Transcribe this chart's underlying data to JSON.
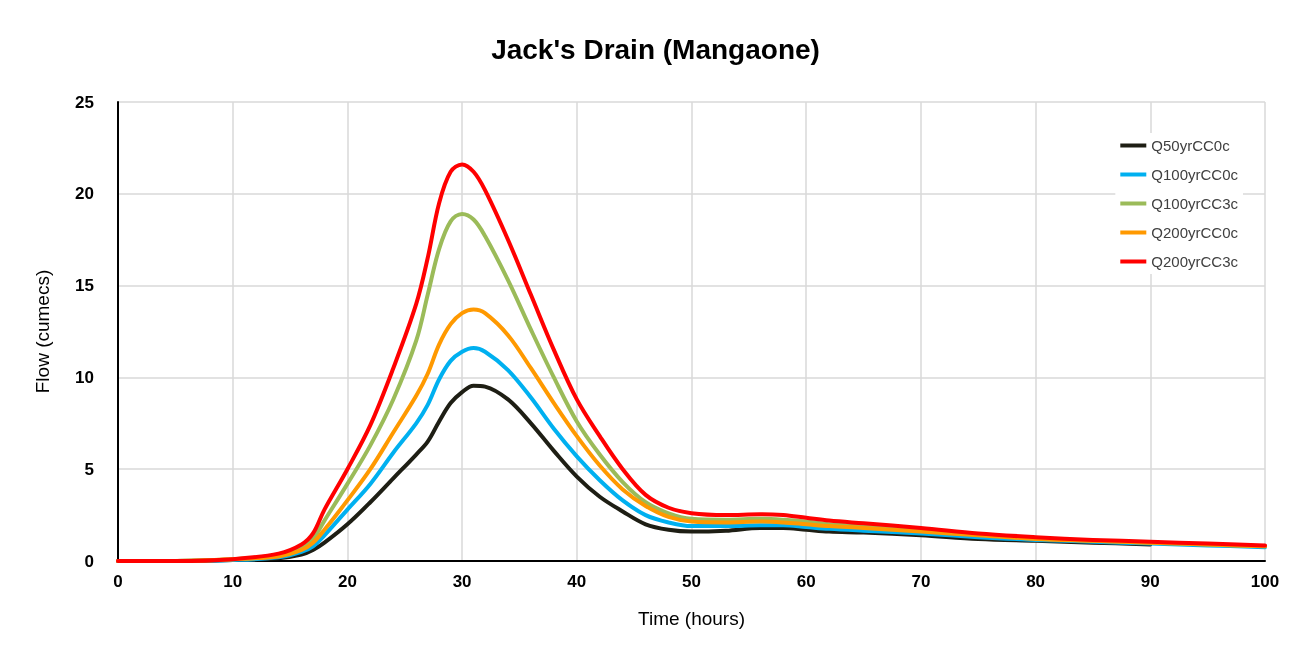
{
  "chart_data": {
    "type": "line",
    "title": "Jack's Drain (Mangaone)",
    "xlabel": "Time (hours)",
    "ylabel": "Flow (cumecs)",
    "x": [
      0,
      5,
      10,
      14,
      16,
      17,
      18,
      20,
      22,
      24,
      26,
      27,
      28,
      29,
      30,
      31,
      32,
      34,
      36,
      38,
      40,
      42,
      44,
      46,
      48,
      50,
      53,
      56,
      58,
      60,
      62,
      65,
      70,
      75,
      80,
      85,
      90,
      95,
      100
    ],
    "series": [
      {
        "name": "Q50yrCC0c",
        "color": "#1e1e14",
        "values": [
          0,
          0,
          0.05,
          0.15,
          0.35,
          0.6,
          1.0,
          2.0,
          3.2,
          4.5,
          5.8,
          6.5,
          7.6,
          8.6,
          9.2,
          9.55,
          9.5,
          8.8,
          7.5,
          6.0,
          4.6,
          3.5,
          2.7,
          2.0,
          1.7,
          1.6,
          1.65,
          1.8,
          1.8,
          1.7,
          1.6,
          1.55,
          1.4,
          1.2,
          1.1,
          1.0,
          0.9,
          null,
          null
        ]
      },
      {
        "name": "Q100yrCC0c",
        "color": "#00b0f0",
        "values": [
          0,
          0,
          0.05,
          0.2,
          0.5,
          0.8,
          1.4,
          2.8,
          4.2,
          5.9,
          7.5,
          8.5,
          9.9,
          10.9,
          11.4,
          11.6,
          11.4,
          10.4,
          8.9,
          7.2,
          5.7,
          4.4,
          3.3,
          2.5,
          2.1,
          1.9,
          1.9,
          1.95,
          1.95,
          1.85,
          1.75,
          1.65,
          1.5,
          1.3,
          1.15,
          1.05,
          0.95,
          0.85,
          0.75
        ]
      },
      {
        "name": "Q100yrCC3c",
        "color": "#9bbb59",
        "values": [
          0,
          0,
          0.1,
          0.3,
          0.7,
          1.2,
          2.2,
          4.2,
          6.3,
          8.8,
          12,
          14.5,
          17,
          18.5,
          18.9,
          18.6,
          17.7,
          15.3,
          12.6,
          10,
          7.6,
          5.8,
          4.3,
          3.2,
          2.6,
          2.3,
          2.25,
          2.3,
          2.25,
          2.15,
          2.0,
          1.9,
          1.7,
          1.45,
          1.25,
          1.1,
          1.0,
          0.9,
          0.8
        ]
      },
      {
        "name": "Q200yrCC0c",
        "color": "#ff9900",
        "values": [
          0,
          0,
          0.1,
          0.25,
          0.6,
          1.0,
          1.7,
          3.3,
          5.0,
          7.0,
          9.0,
          10.2,
          11.8,
          12.9,
          13.5,
          13.7,
          13.5,
          12.3,
          10.5,
          8.6,
          6.8,
          5.2,
          3.9,
          3.0,
          2.4,
          2.15,
          2.1,
          2.15,
          2.1,
          2.0,
          1.9,
          1.8,
          1.6,
          1.4,
          1.2,
          1.1,
          1.0,
          0.9,
          0.8
        ]
      },
      {
        "name": "Q200yrCC3c",
        "color": "#ff0000",
        "values": [
          0,
          0,
          0.1,
          0.4,
          0.9,
          1.5,
          2.8,
          5,
          7.4,
          10.5,
          14,
          16.5,
          19.5,
          21.2,
          21.6,
          21.2,
          20.2,
          17.5,
          14.5,
          11.5,
          8.8,
          6.8,
          5,
          3.6,
          2.9,
          2.6,
          2.5,
          2.55,
          2.5,
          2.35,
          2.2,
          2.05,
          1.8,
          1.5,
          1.3,
          1.15,
          1.05,
          0.95,
          0.85
        ]
      }
    ],
    "xlim": [
      0,
      100
    ],
    "xticks": [
      0,
      10,
      20,
      30,
      40,
      50,
      60,
      70,
      80,
      90,
      100
    ],
    "ylim": [
      0,
      25
    ],
    "yticks": [
      0,
      5,
      10,
      15,
      20,
      25
    ],
    "grid": true,
    "legend": "top right",
    "marker": "none",
    "line_style": "solid"
  }
}
